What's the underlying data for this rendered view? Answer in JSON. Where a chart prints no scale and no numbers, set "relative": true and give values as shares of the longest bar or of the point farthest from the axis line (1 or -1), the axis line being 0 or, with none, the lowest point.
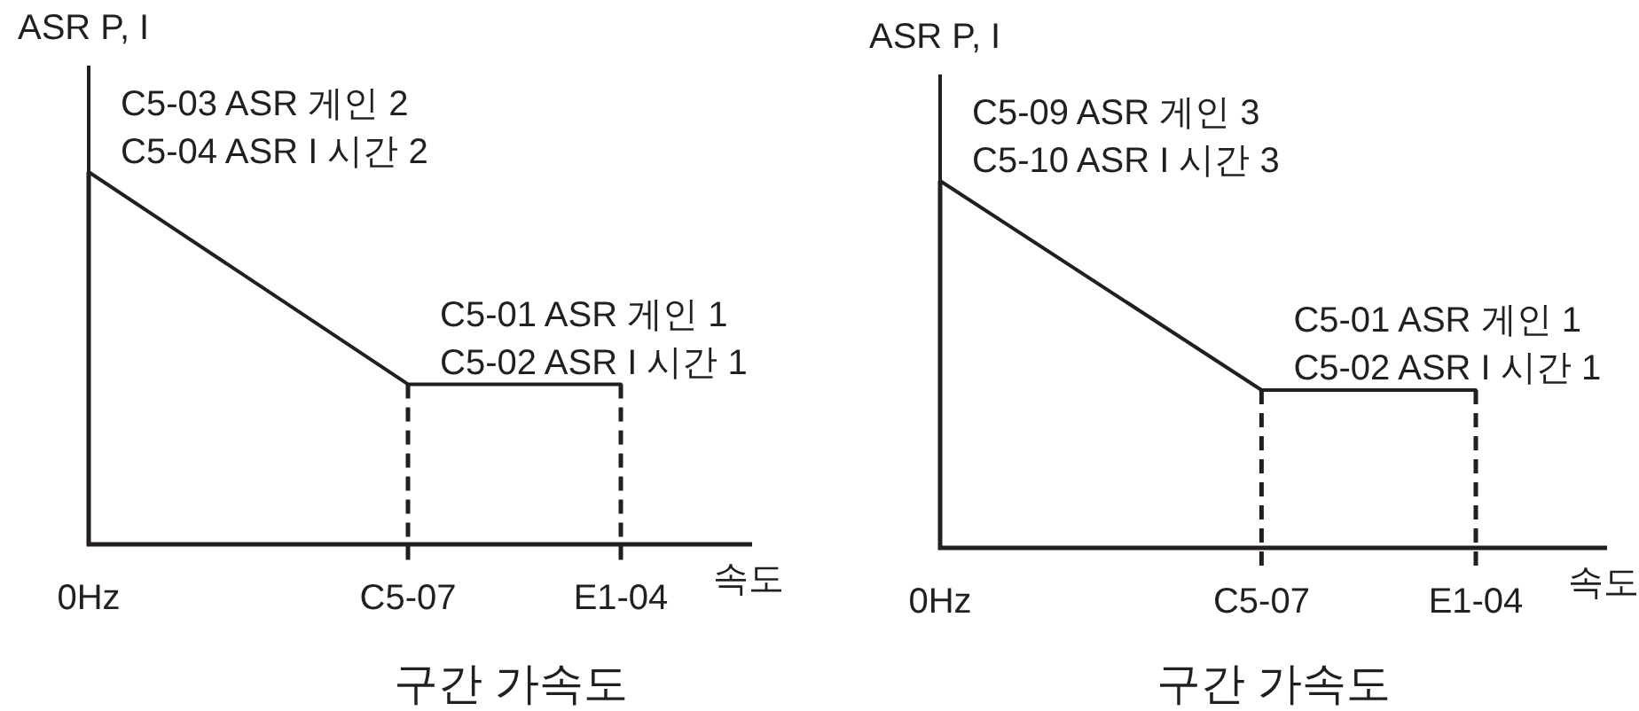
{
  "chart_data": [
    {
      "type": "line",
      "title": "구간 가속도",
      "xlabel": "속도",
      "ylabel": "ASR P, I",
      "relative": true,
      "categories": [
        "0Hz",
        null,
        null,
        "C5-07",
        null,
        "E1-04"
      ],
      "series": [
        {
          "color": "#231f20",
          "values": [
            1,
            null,
            null,
            0.43,
            null,
            0.43
          ]
        }
      ],
      "ref_lines": [
        {
          "axis": "x",
          "value": "C5-07",
          "line_style": "dashed"
        },
        {
          "axis": "x",
          "value": "E1-04",
          "line_style": "dashed"
        }
      ],
      "annotations": [
        {
          "text": "C5-03 ASR 게인 2\nC5-04 ASR I 시간 2",
          "x": "0Hz",
          "y": 1
        },
        {
          "text": "C5-01 ASR 게인 1\nC5-02 ASR I 시간 1",
          "x": "C5-07",
          "y": 0.43
        }
      ]
    },
    {
      "type": "line",
      "title": "구간 가속도",
      "xlabel": "속도",
      "ylabel": "ASR P, I",
      "relative": true,
      "categories": [
        "0Hz",
        null,
        null,
        "C5-07",
        null,
        "E1-04"
      ],
      "series": [
        {
          "color": "#231f20",
          "values": [
            1,
            null,
            null,
            0.43,
            null,
            0.43
          ]
        }
      ],
      "ref_lines": [
        {
          "axis": "x",
          "value": "C5-07",
          "line_style": "dashed"
        },
        {
          "axis": "x",
          "value": "E1-04",
          "line_style": "dashed"
        }
      ],
      "annotations": [
        {
          "text": "C5-09 ASR 게인 3\nC5-10 ASR I 시간 3",
          "x": "0Hz",
          "y": 1
        },
        {
          "text": "C5-01 ASR 게인 1\nC5-02 ASR I 시간 1",
          "x": "C5-07",
          "y": 0.43
        }
      ]
    }
  ]
}
